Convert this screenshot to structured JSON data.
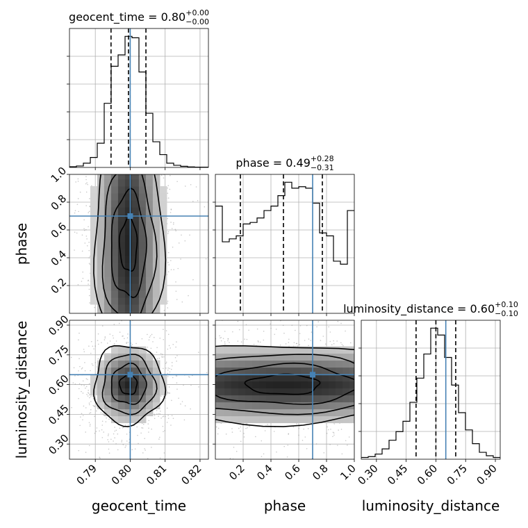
{
  "chart_data": {
    "type": "corner",
    "parameters": [
      "geocent_time",
      "phase",
      "luminosity_distance"
    ],
    "axis_ranges": {
      "geocent_time": [
        0.7826,
        0.8224
      ],
      "phase": [
        0.0,
        1.0
      ],
      "luminosity_distance": [
        0.2235,
        0.9245
      ]
    },
    "ticks": {
      "geocent_time": [
        0.79,
        0.8,
        0.81,
        0.82
      ],
      "phase": [
        0.2,
        0.4,
        0.6,
        0.8,
        1.0
      ],
      "luminosity_distance": [
        0.3,
        0.45,
        0.6,
        0.75,
        0.9
      ]
    },
    "tick_labels": {
      "geocent_time": [
        "0.79",
        "0.80",
        "0.81",
        "0.82"
      ],
      "phase": [
        "0.2",
        "0.4",
        "0.6",
        "0.8",
        "1.0"
      ],
      "luminosity_distance": [
        "0.30",
        "0.45",
        "0.60",
        "0.75",
        "0.90"
      ]
    },
    "axis_labels": {
      "geocent_time": "geocent_time",
      "phase": "phase",
      "luminosity_distance": "luminosity_distance"
    },
    "titles": [
      {
        "param": "geocent_time",
        "text": "geocent_time = 0.80",
        "median": 0.8,
        "plus": "+0.00",
        "minus": "−0.00"
      },
      {
        "param": "phase",
        "text": "phase = 0.49",
        "median": 0.49,
        "plus": "+0.28",
        "minus": "−0.31"
      },
      {
        "param": "luminosity_distance",
        "text": "luminosity_distance = 0.60",
        "median": 0.6,
        "plus": "+0.10",
        "minus": "−0.10"
      }
    ],
    "quantiles": {
      "geocent_time": [
        0.7945,
        0.7995,
        0.8045
      ],
      "phase": [
        0.18,
        0.49,
        0.77
      ],
      "luminosity_distance": [
        0.5,
        0.6,
        0.7
      ]
    },
    "truths": {
      "geocent_time": 0.8,
      "phase": 0.7,
      "luminosity_distance": 0.65
    },
    "histograms": {
      "geocent_time": {
        "bin_edges": [
          0.7826,
          0.78459,
          0.78658,
          0.78857,
          0.79056,
          0.79255,
          0.79454,
          0.79653,
          0.79852,
          0.80051,
          0.8025,
          0.80449,
          0.80648,
          0.80847,
          0.81046,
          0.81245,
          0.81444,
          0.81643,
          0.81842,
          0.82041,
          0.8224
        ],
        "counts": [
          0.5,
          1,
          3,
          7,
          17,
          45,
          71,
          79,
          92,
          91,
          67,
          38,
          18,
          9,
          3,
          1.5,
          0.8,
          0.4,
          0.2,
          0.2
        ]
      },
      "phase": {
        "bin_edges": [
          0,
          0.05,
          0.1,
          0.15,
          0.2,
          0.25,
          0.3,
          0.35,
          0.4,
          0.45,
          0.5,
          0.55,
          0.6,
          0.65,
          0.7,
          0.75,
          0.8,
          0.85,
          0.9,
          0.95,
          1.0
        ],
        "counts": [
          72,
          48,
          50,
          52,
          60,
          61,
          64,
          69,
          72,
          79,
          88,
          84,
          85,
          84,
          74,
          54,
          52,
          35,
          33,
          69
        ]
      },
      "luminosity_distance": {
        "bin_edges": [
          0.2235,
          0.25855,
          0.2936,
          0.32865,
          0.3637,
          0.39875,
          0.4338,
          0.46885,
          0.5039,
          0.53895,
          0.574,
          0.60905,
          0.6441,
          0.67915,
          0.7142,
          0.74925,
          0.7843,
          0.81935,
          0.8544,
          0.88945,
          0.9245
        ],
        "counts": [
          1,
          1.5,
          3,
          6,
          11,
          16,
          22,
          33,
          47,
          61,
          76,
          72,
          59,
          43,
          27,
          17,
          9,
          4,
          2,
          1
        ]
      }
    },
    "contour_levels": [
      "0.5-sigma",
      "1-sigma",
      "1.5-sigma",
      "2-sigma"
    ],
    "truth_color": "#4682b4",
    "line_color": "#000000",
    "grid": true
  }
}
